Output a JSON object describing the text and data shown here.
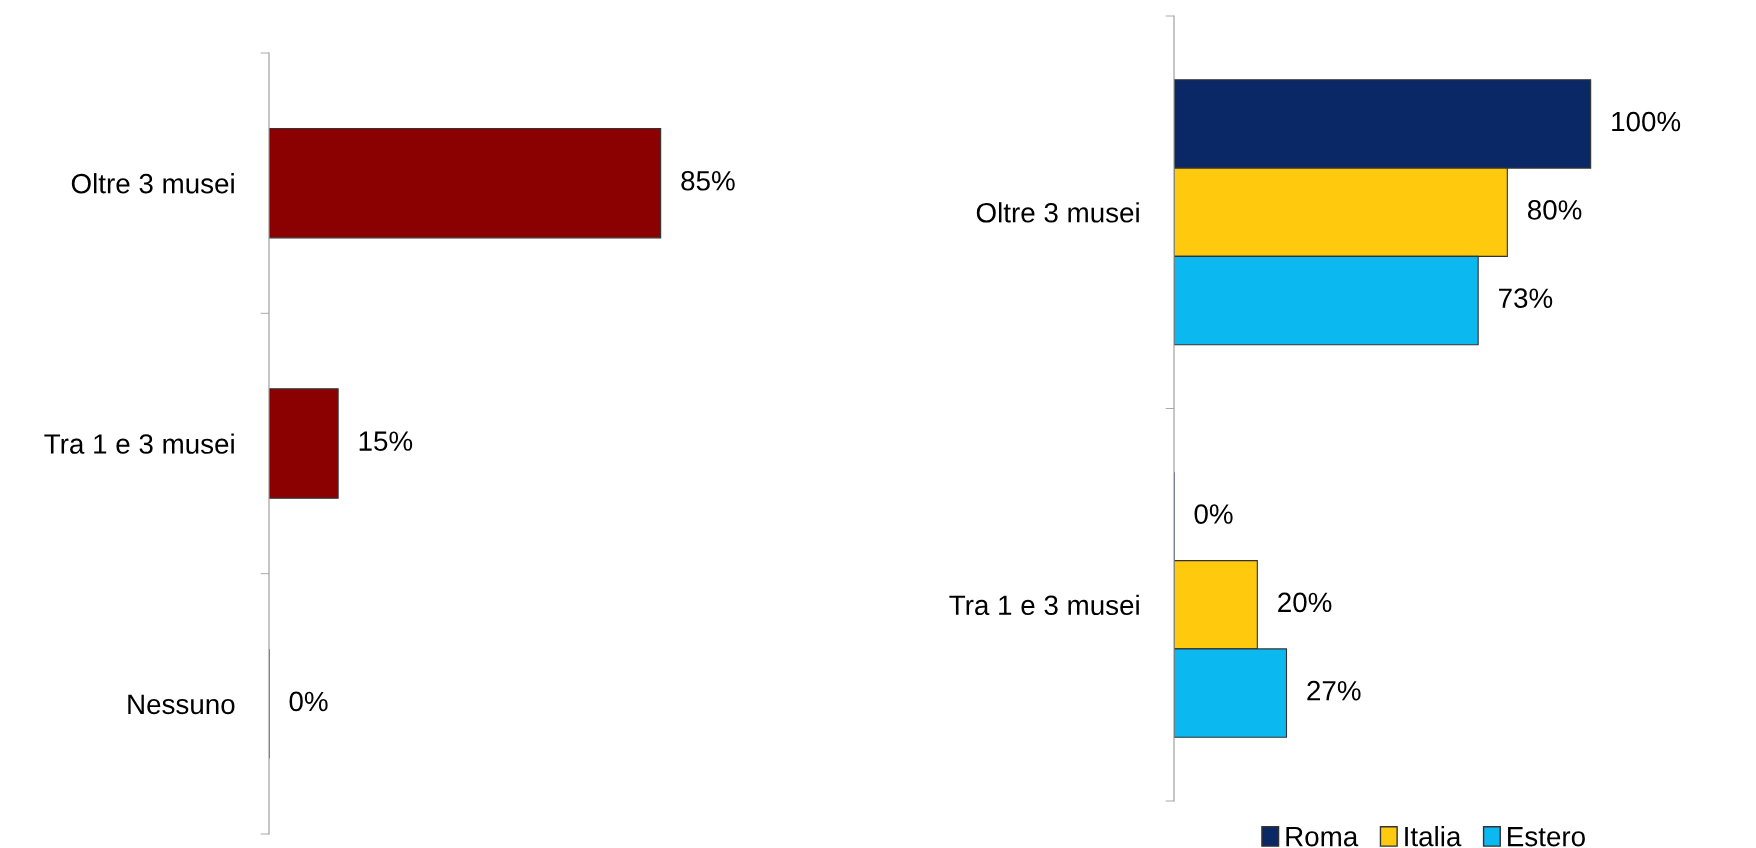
{
  "chart_data": [
    {
      "type": "bar",
      "orientation": "horizontal",
      "categories": [
        "Oltre 3 musei",
        "Tra 1 e 3 musei",
        "Nessuno"
      ],
      "series": [
        {
          "color": "#8b0000",
          "values": [
            85,
            15,
            0
          ],
          "value_labels": [
            "85%",
            "15%",
            "0%"
          ]
        }
      ]
    },
    {
      "type": "bar",
      "orientation": "horizontal",
      "categories": [
        "Oltre 3 musei",
        "Tra 1 e 3 musei"
      ],
      "legend": "bottom",
      "series": [
        {
          "name": "Roma",
          "color": "#0b2866",
          "values": [
            100,
            0
          ],
          "value_labels": [
            "100%",
            "0%"
          ]
        },
        {
          "name": "Italia",
          "color": "#ffc90e",
          "values": [
            80,
            20
          ],
          "value_labels": [
            "80%",
            "20%"
          ]
        },
        {
          "name": "Estero",
          "color": "#0bb8f0",
          "values": [
            73,
            27
          ],
          "value_labels": [
            "73%",
            "27%"
          ]
        }
      ]
    }
  ]
}
